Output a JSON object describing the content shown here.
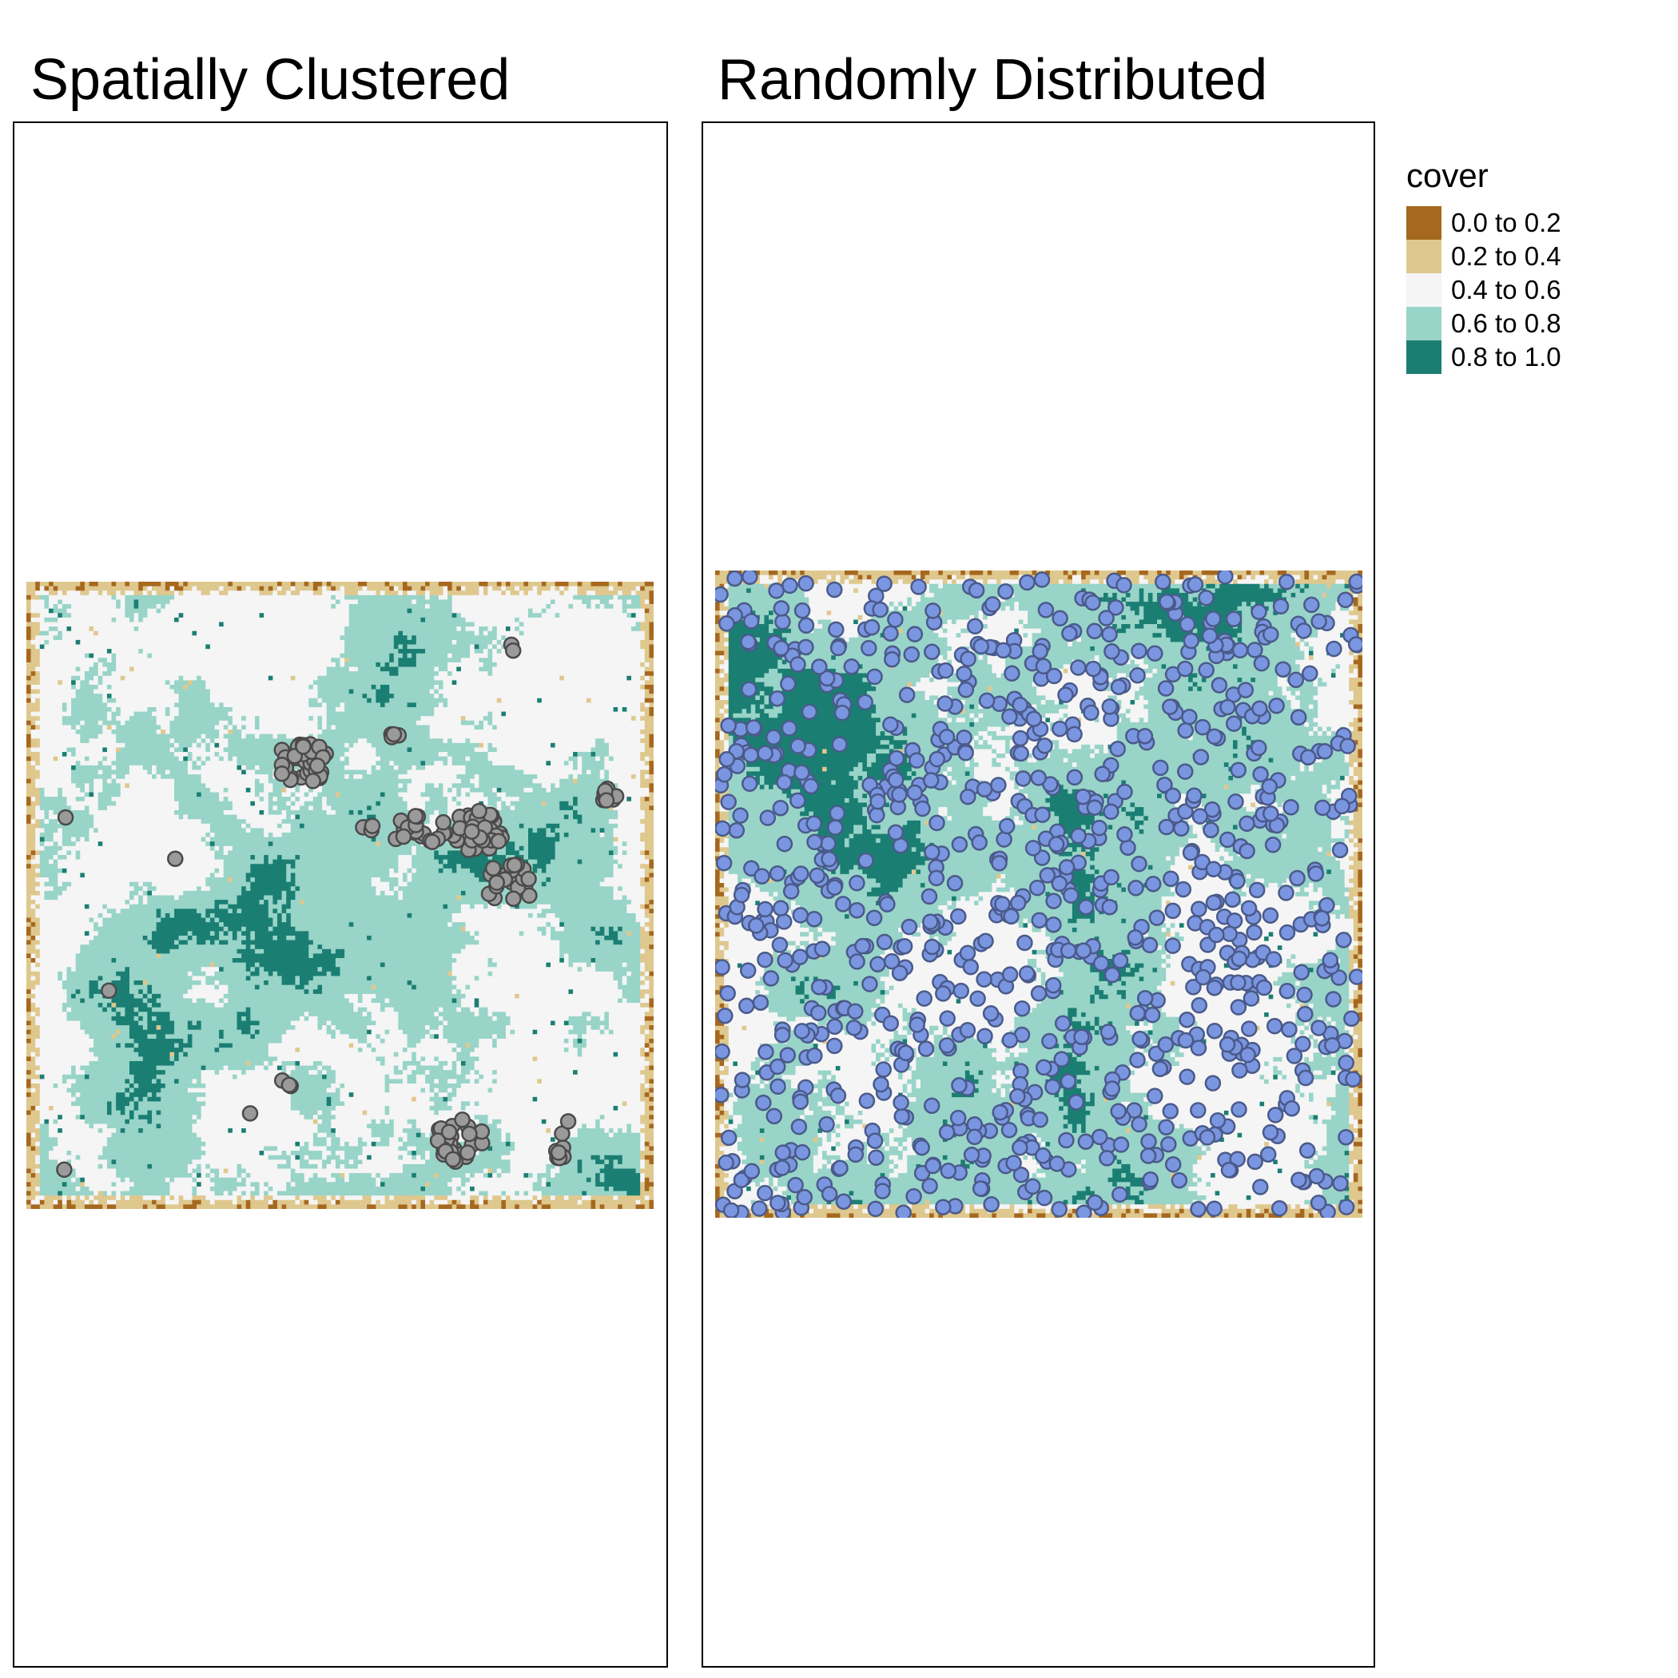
{
  "panels": {
    "left": {
      "title": "Spatially Clustered",
      "point_fill": "#9a9a9a",
      "point_stroke": "#4a4a4a"
    },
    "right": {
      "title": "Randomly Distributed",
      "point_fill": "#7b96e0",
      "point_stroke": "#4a5a8a"
    }
  },
  "legend": {
    "title": "cover",
    "items": [
      {
        "label": "0.0 to 0.2",
        "color": "#a6681f"
      },
      {
        "label": "0.2 to 0.4",
        "color": "#dfc88e"
      },
      {
        "label": "0.4 to 0.6",
        "color": "#f5f5f5"
      },
      {
        "label": "0.6 to 0.8",
        "color": "#98d4c8"
      },
      {
        "label": "0.8 to 1.0",
        "color": "#1b7e73"
      }
    ]
  },
  "chart_data": [
    {
      "type": "heatmap",
      "title": "Spatially Clustered",
      "value": "cover",
      "legend_position": "right",
      "point_pattern": "clustered",
      "cluster_centers": [
        [
          0.44,
          0.29
        ],
        [
          0.72,
          0.4
        ],
        [
          0.63,
          0.39
        ],
        [
          0.77,
          0.48
        ],
        [
          0.69,
          0.89
        ],
        [
          0.93,
          0.34
        ],
        [
          0.85,
          0.91
        ],
        [
          0.78,
          0.1
        ],
        [
          0.59,
          0.24
        ],
        [
          0.42,
          0.8
        ],
        [
          0.07,
          0.38
        ],
        [
          0.23,
          0.44
        ],
        [
          0.12,
          0.65
        ],
        [
          0.05,
          0.94
        ],
        [
          0.36,
          0.85
        ],
        [
          0.59,
          0.41
        ],
        [
          0.55,
          0.39
        ],
        [
          0.86,
          0.87
        ]
      ],
      "cover_value_range": [
        0,
        1
      ]
    },
    {
      "type": "scatter",
      "title": "Randomly Distributed",
      "value": "cover",
      "legend_position": "right",
      "point_pattern": "random",
      "cover_value_range": [
        0,
        1
      ]
    }
  ]
}
